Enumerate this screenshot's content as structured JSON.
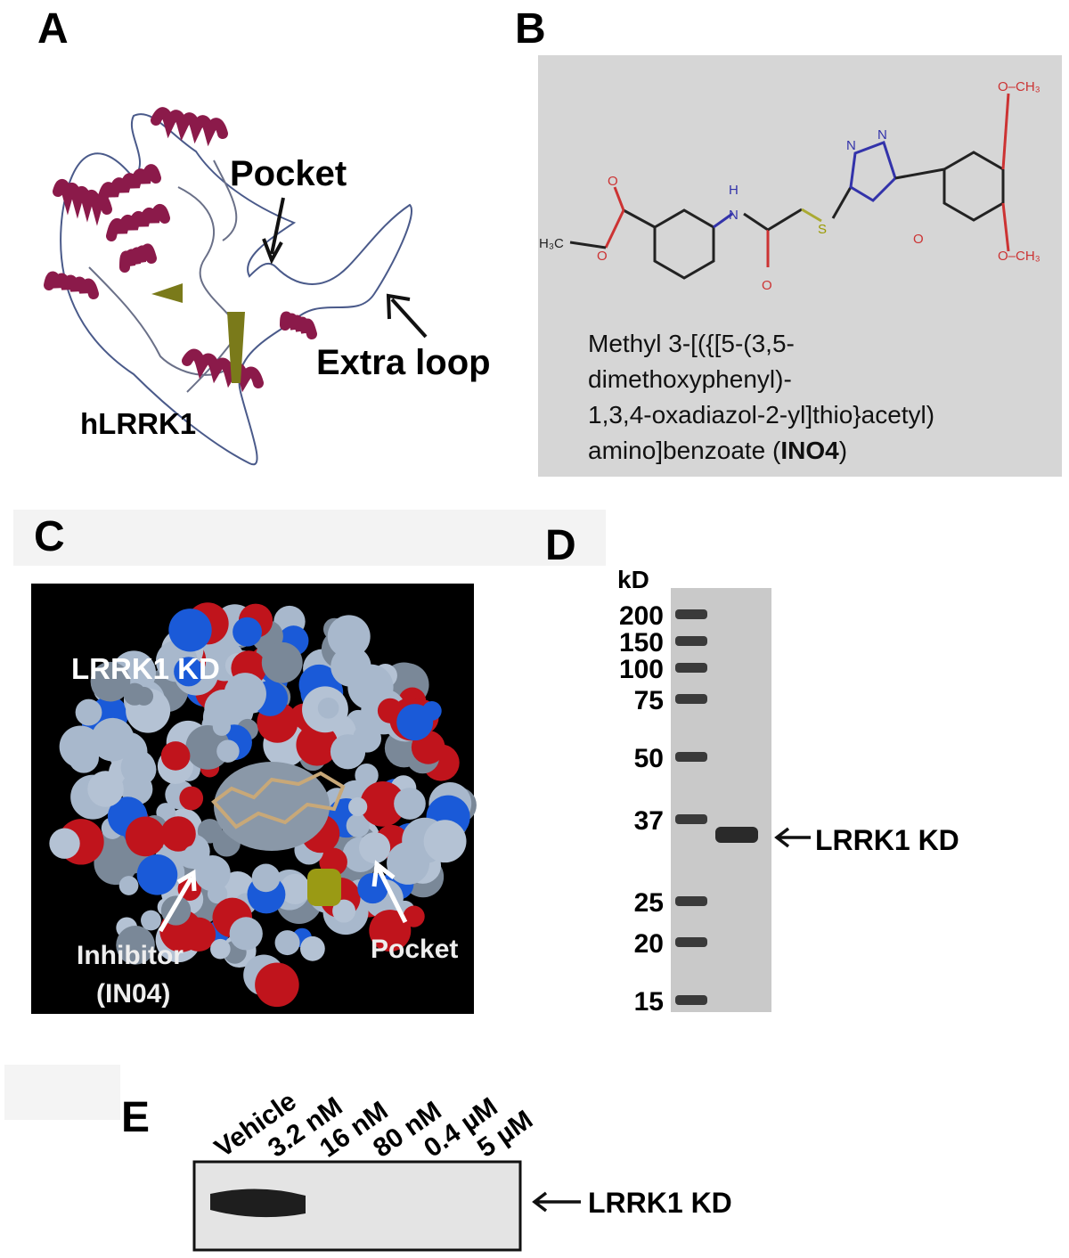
{
  "panel_a": {
    "label": "A",
    "pocket": "Pocket",
    "extra_loop": "Extra loop",
    "protein": "hLRRK1"
  },
  "panel_b": {
    "label": "B",
    "atoms": [
      "H₃C",
      "O",
      "O",
      "H",
      "N",
      "O",
      "S",
      "N",
      "N",
      "O",
      "O–CH₃",
      "O–CH₃"
    ],
    "caption": {
      "lines": [
        "Methyl 3-[({[5-(3,5-",
        "dimethoxyphenyl)-",
        "1,3,4-oxadiazol-2-yl]thio}acetyl)"
      ],
      "last_prefix": "amino]benzoate (",
      "compound": "INO4",
      "last_suffix": ")"
    }
  },
  "panel_c": {
    "label": "C",
    "title": "LRRK1 KD",
    "inhibitor": "Inhibitor",
    "inhibitor_id": "(IN04)",
    "pocket": "Pocket"
  },
  "panel_d": {
    "label": "D",
    "unit": "kD",
    "markers": [
      "200",
      "150",
      "100",
      "75",
      "50",
      "37",
      "25",
      "20",
      "15"
    ],
    "band_label": "LRRK1 KD"
  },
  "panel_e": {
    "label": "E",
    "lanes": [
      "Vehicle",
      "3.2 nM",
      "16 nM",
      "80 nM",
      "0.4 µM",
      "5 µM"
    ],
    "band_label": "LRRK1 KD"
  }
}
